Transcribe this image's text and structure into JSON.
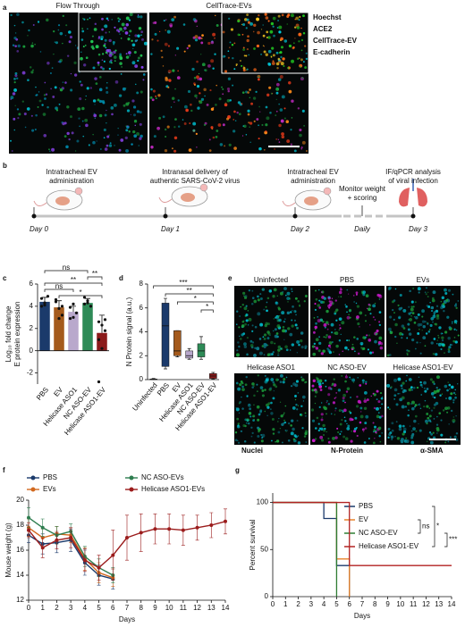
{
  "panel_labels": [
    "a",
    "b",
    "c",
    "d",
    "e",
    "f",
    "g"
  ],
  "panel_a": {
    "titles": [
      "Flow Through",
      "CellTrace-EVs"
    ],
    "legend": [
      {
        "text": "Hoechst",
        "color": "#00d8d8"
      },
      {
        "text": "ACE2",
        "color": "#22cc22"
      },
      {
        "text": "CellTrace-EV",
        "color": "#ff4a1a"
      },
      {
        "text": "E-cadherin",
        "color": "#e040e0"
      }
    ]
  },
  "panel_b": {
    "steps": [
      [
        "Intratracheal EV",
        "administration"
      ],
      [
        "Intranasal delivery of",
        "authentic SARS-CoV-2 virus"
      ],
      [
        "Intratracheal EV",
        "administration"
      ],
      [
        "IF/qPCR analysis",
        "of viral infection"
      ]
    ],
    "days": [
      "Day 0",
      "Day 1",
      "Day 2",
      "Day 3"
    ],
    "monitor": [
      "Monitor weight",
      "+ scoring"
    ],
    "daily": "Daily"
  },
  "panel_e": {
    "titles": [
      "Uninfected",
      "PBS",
      "EVs",
      "Helicase ASO1",
      "NC ASO-EV",
      "Helicase ASO1-EV"
    ],
    "legend": [
      {
        "text": "Nuclei",
        "color": "#00c8c8"
      },
      {
        "text": "N-Protein",
        "color": "#d01ad0"
      },
      {
        "text": "α-SMA",
        "color": "#22bb22"
      }
    ]
  },
  "chart_data": [
    {
      "type": "bar",
      "ylabel": [
        "Log₁₀ fold change",
        "E protein expression"
      ],
      "categories": [
        "PBS",
        "EV",
        "Helicase ASO1",
        "NC ASO-EV",
        "Helicase ASO1-EV"
      ],
      "values": [
        4.4,
        3.9,
        3.5,
        4.3,
        1.6
      ],
      "errors": [
        0.4,
        0.6,
        0.5,
        0.4,
        1.6
      ],
      "colors": [
        "#1b3a6b",
        "#a45a1c",
        "#b9a8cc",
        "#2e8b57",
        "#8b1a1a"
      ],
      "points": [
        [
          4.7,
          4.3,
          4.9,
          4.0,
          4.1
        ],
        [
          4.4,
          3.8,
          3.2,
          4.6,
          2.9,
          4.0
        ],
        [
          3.9,
          3.0,
          3.4,
          2.9,
          4.2
        ],
        [
          4.2,
          4.5,
          4.0,
          4.8,
          4.3
        ],
        [
          2.6,
          2.3,
          1.8,
          1.0,
          0.2,
          2.8,
          -2.8
        ]
      ],
      "ylim": [
        -3,
        6
      ],
      "yticks": [
        -2,
        0,
        2,
        4,
        6
      ],
      "annotations": [
        {
          "label": "ns",
          "between": [
            0,
            3
          ]
        },
        {
          "label": "**",
          "between": [
            3,
            4
          ]
        },
        {
          "label": "**",
          "between": [
            0,
            4
          ]
        },
        {
          "label": "ns",
          "between": [
            0,
            2
          ]
        },
        {
          "label": "*",
          "between": [
            1,
            4
          ]
        }
      ]
    },
    {
      "type": "box",
      "ylabel": "N Protein signal (a.u.)",
      "categories": [
        "Uninfected",
        "PBS",
        "EV",
        "Helicase ASO1",
        "NC ASO-EV",
        "Helicase ASO1-EV"
      ],
      "colors": [
        "#888888",
        "#1b3a6b",
        "#a45a1c",
        "#b9a8cc",
        "#2e8b57",
        "#8b1a1a"
      ],
      "min": [
        0,
        0.9,
        1.9,
        1.7,
        1.7,
        0.05
      ],
      "q1": [
        0,
        1.1,
        2.0,
        1.8,
        1.9,
        0.1
      ],
      "median": [
        0.02,
        4.5,
        2.4,
        2.0,
        2.4,
        0.3
      ],
      "q3": [
        0.05,
        6.4,
        4.1,
        2.4,
        3.0,
        0.5
      ],
      "max": [
        0.1,
        6.8,
        4.1,
        2.6,
        3.6,
        0.6
      ],
      "ylim": [
        0,
        8
      ],
      "yticks": [
        0,
        2,
        4,
        6,
        8
      ],
      "annotations": [
        {
          "label": "***",
          "between": [
            0,
            5
          ]
        },
        {
          "label": "**",
          "between": [
            1,
            5
          ]
        },
        {
          "label": "*",
          "between": [
            2,
            5
          ]
        },
        {
          "label": "*",
          "between": [
            4,
            5
          ]
        }
      ]
    },
    {
      "type": "line",
      "ylabel": "Mouse weight (g)",
      "xlabel": "Days",
      "x": [
        0,
        1,
        2,
        3,
        4,
        5,
        6,
        7,
        8,
        9,
        10,
        11,
        12,
        13,
        14
      ],
      "series": [
        {
          "name": "PBS",
          "color": "#1b3a6b",
          "values": [
            17.2,
            16.5,
            16.6,
            16.8,
            15.0,
            14.0,
            13.7,
            null,
            null,
            null,
            null,
            null,
            null,
            null,
            null
          ],
          "errors": [
            0.6,
            0.8,
            0.8,
            0.9,
            1.0,
            0.8,
            0.8,
            null,
            null,
            null,
            null,
            null,
            null,
            null,
            null
          ]
        },
        {
          "name": "EVs",
          "color": "#d2691e",
          "values": [
            17.8,
            17.0,
            17.3,
            17.2,
            15.3,
            14.2,
            13.8,
            null,
            null,
            null,
            null,
            null,
            null,
            null,
            null
          ],
          "errors": [
            0.7,
            0.7,
            0.6,
            0.6,
            0.9,
            0.8,
            0.7,
            null,
            null,
            null,
            null,
            null,
            null,
            null,
            null
          ]
        },
        {
          "name": "NC ASO-EVs",
          "color": "#2e7d4f",
          "values": [
            18.6,
            17.8,
            17.2,
            17.5,
            15.5,
            14.6,
            14.0,
            null,
            null,
            null,
            null,
            null,
            null,
            null,
            null
          ],
          "errors": [
            0.8,
            0.7,
            0.7,
            0.6,
            0.8,
            0.7,
            0.6,
            null,
            null,
            null,
            null,
            null,
            null,
            null,
            null
          ]
        },
        {
          "name": "Helicase ASO1-EVs",
          "color": "#9b1c1c",
          "values": [
            17.6,
            16.2,
            16.8,
            17.0,
            15.2,
            14.6,
            15.6,
            17.0,
            17.4,
            17.7,
            17.7,
            17.6,
            17.8,
            18.0,
            18.3
          ],
          "errors": [
            0.6,
            0.8,
            0.7,
            0.8,
            0.9,
            1.0,
            2.0,
            1.8,
            1.5,
            1.2,
            1.2,
            1.2,
            1.0,
            1.0,
            1.0
          ]
        }
      ],
      "xlim": [
        0,
        14
      ],
      "xticks": [
        0,
        1,
        2,
        3,
        4,
        5,
        6,
        7,
        8,
        9,
        10,
        11,
        12,
        13,
        14
      ],
      "ylim": [
        12,
        20
      ],
      "yticks": [
        12,
        14,
        16,
        18,
        20
      ]
    },
    {
      "type": "step",
      "ylabel": "Percent survival",
      "xlabel": "Days",
      "series": [
        {
          "name": "PBS",
          "color": "#1b3a6b",
          "x": [
            0,
            4,
            5,
            6
          ],
          "values": [
            100,
            83,
            33,
            0
          ]
        },
        {
          "name": "EV",
          "color": "#e8822a",
          "x": [
            0,
            5,
            6
          ],
          "values": [
            100,
            40,
            0
          ]
        },
        {
          "name": "NC ASO-EV",
          "color": "#2e7d32",
          "x": [
            0,
            5
          ],
          "values": [
            100,
            0
          ]
        },
        {
          "name": "Helicase ASO1-EV",
          "color": "#b22222",
          "x": [
            0,
            6,
            14
          ],
          "values": [
            100,
            33,
            33
          ]
        }
      ],
      "xlim": [
        0,
        14
      ],
      "xticks": [
        0,
        1,
        2,
        3,
        4,
        5,
        6,
        7,
        8,
        9,
        10,
        11,
        12,
        13,
        14
      ],
      "ylim": [
        0,
        110
      ],
      "yticks": [
        0,
        50,
        100
      ],
      "annotations": [
        {
          "label": "ns",
          "between": [
            1,
            2
          ]
        },
        {
          "label": "*",
          "between": [
            0,
            3
          ]
        },
        {
          "label": "***",
          "between": [
            2,
            3
          ]
        }
      ]
    }
  ]
}
